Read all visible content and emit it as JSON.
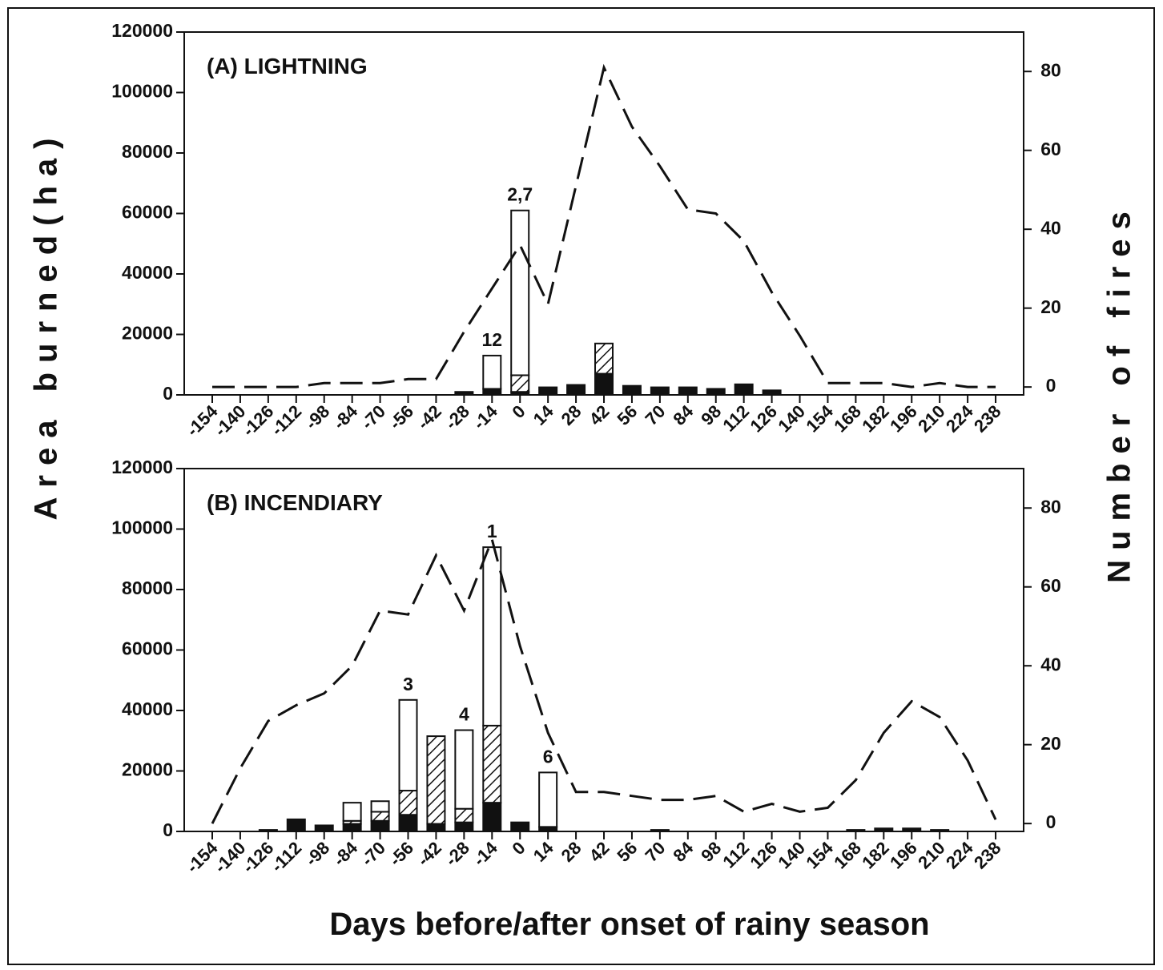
{
  "figure": {
    "x_label": "Days before/after onset of rainy season",
    "y_label": "Area burned(ha)",
    "y2_label": "Number of fires"
  },
  "chart_data": [
    {
      "type": "bar",
      "title": "(A) LIGHTNING",
      "categories": [
        "-154",
        "-140",
        "-126",
        "-112",
        "-98",
        "-84",
        "-70",
        "-56",
        "-42",
        "-28",
        "-14",
        "0",
        "14",
        "28",
        "42",
        "56",
        "70",
        "84",
        "98",
        "112",
        "126",
        "140",
        "154",
        "168",
        "182",
        "196",
        "210",
        "224",
        "238"
      ],
      "series": [
        {
          "color": "#111111",
          "values": [
            0,
            0,
            0,
            0,
            0,
            0,
            0,
            0,
            0,
            1000,
            2000,
            1000,
            2500,
            3300,
            7000,
            3000,
            2500,
            2500,
            2000,
            3500,
            1500,
            0,
            0,
            0,
            0,
            0,
            0,
            0,
            0
          ]
        },
        {
          "color": "#111111",
          "pattern": "hatch",
          "values": [
            0,
            0,
            0,
            0,
            0,
            0,
            0,
            0,
            0,
            0,
            0,
            5500,
            0,
            0,
            10000,
            0,
            0,
            0,
            0,
            0,
            0,
            0,
            0,
            0,
            0,
            0,
            0,
            0,
            0
          ]
        },
        {
          "color": "#ffffff",
          "values": [
            0,
            0,
            0,
            0,
            0,
            0,
            0,
            0,
            0,
            0,
            11000,
            54500,
            0,
            0,
            0,
            0,
            0,
            0,
            0,
            0,
            0,
            0,
            0,
            0,
            0,
            0,
            0,
            0,
            0
          ]
        },
        {
          "type": "line",
          "style": "dashed",
          "axis": "y2",
          "color": "#111111",
          "values": [
            0,
            0,
            0,
            0,
            1,
            1,
            1,
            2,
            2,
            14,
            25,
            36,
            21,
            51,
            81,
            66,
            56,
            45,
            44,
            37,
            24,
            13,
            1,
            1,
            1,
            0,
            1,
            0,
            0
          ]
        }
      ],
      "bar_labels": [
        null,
        null,
        null,
        null,
        null,
        null,
        null,
        null,
        null,
        null,
        "12",
        "2,7",
        null,
        null,
        null,
        null,
        null,
        null,
        null,
        null,
        null,
        null,
        null,
        null,
        null,
        null,
        null,
        null,
        null
      ],
      "ylim": [
        0,
        120000
      ],
      "yticks": [
        0,
        20000,
        40000,
        60000,
        80000,
        100000,
        120000
      ],
      "y2lim": [
        -2,
        90
      ],
      "y2ticks": [
        0,
        20,
        40,
        60,
        80
      ]
    },
    {
      "type": "bar",
      "title": "(B) INCENDIARY",
      "categories": [
        "-154",
        "-140",
        "-126",
        "-112",
        "-98",
        "-84",
        "-70",
        "-56",
        "-42",
        "-28",
        "-14",
        "0",
        "14",
        "28",
        "42",
        "56",
        "70",
        "84",
        "98",
        "112",
        "126",
        "140",
        "154",
        "168",
        "182",
        "196",
        "210",
        "224",
        "238"
      ],
      "series": [
        {
          "color": "#111111",
          "values": [
            0,
            0,
            500,
            4000,
            2000,
            2500,
            3500,
            5500,
            2500,
            3000,
            9500,
            3000,
            1500,
            0,
            0,
            0,
            500,
            0,
            0,
            0,
            0,
            0,
            0,
            500,
            1000,
            1000,
            500,
            0,
            0
          ]
        },
        {
          "color": "#111111",
          "pattern": "hatch",
          "values": [
            0,
            0,
            0,
            0,
            0,
            1000,
            3000,
            8000,
            29000,
            4500,
            25500,
            0,
            0,
            0,
            0,
            0,
            0,
            0,
            0,
            0,
            0,
            0,
            0,
            0,
            0,
            0,
            0,
            0,
            0
          ]
        },
        {
          "color": "#ffffff",
          "values": [
            0,
            0,
            0,
            0,
            0,
            6000,
            3500,
            30000,
            0,
            26000,
            59000,
            0,
            18000,
            0,
            0,
            0,
            0,
            0,
            0,
            0,
            0,
            0,
            0,
            0,
            0,
            0,
            0,
            0,
            0
          ]
        },
        {
          "type": "line",
          "style": "dashed",
          "axis": "y2",
          "color": "#111111",
          "values": [
            0,
            14,
            26,
            30,
            33,
            40,
            54,
            53,
            68,
            54,
            72,
            45,
            23,
            8,
            8,
            7,
            6,
            6,
            7,
            3,
            5,
            3,
            4,
            11,
            23,
            31,
            27,
            16,
            1
          ]
        }
      ],
      "bar_labels": [
        null,
        null,
        null,
        null,
        null,
        null,
        null,
        "3",
        null,
        "4",
        "1",
        null,
        "6",
        null,
        null,
        null,
        null,
        null,
        null,
        null,
        null,
        null,
        null,
        null,
        null,
        null,
        null,
        null,
        null
      ],
      "ylim": [
        0,
        120000
      ],
      "yticks": [
        0,
        20000,
        40000,
        60000,
        80000,
        100000,
        120000
      ],
      "y2lim": [
        -2,
        90
      ],
      "y2ticks": [
        0,
        20,
        40,
        60,
        80
      ]
    }
  ]
}
